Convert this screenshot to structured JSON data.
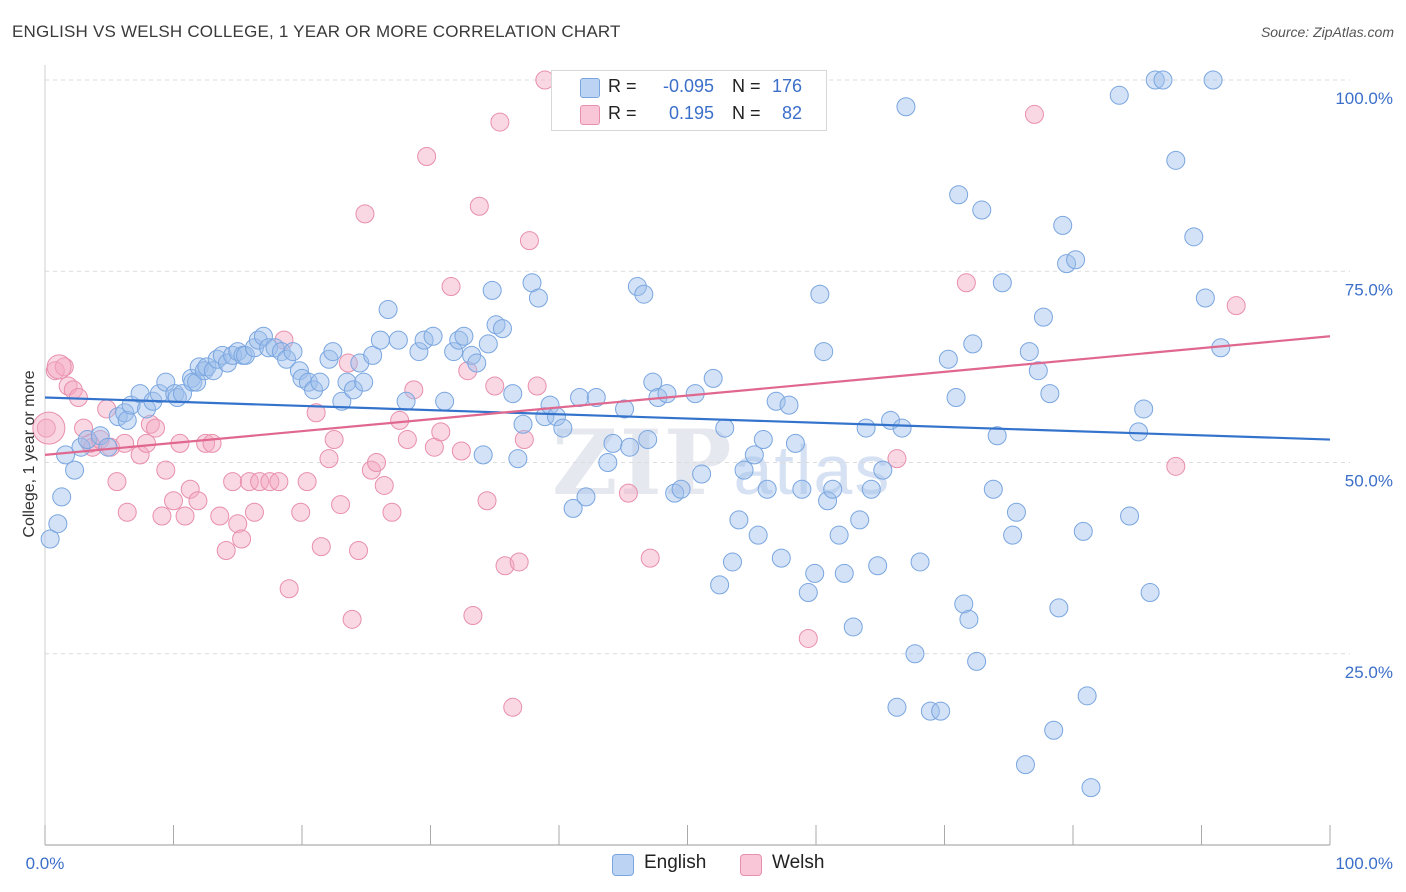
{
  "title": "ENGLISH VS WELSH COLLEGE, 1 YEAR OR MORE CORRELATION CHART",
  "source": "Source: ZipAtlas.com",
  "watermark_main": "ZIP",
  "watermark_sub": "atlas",
  "legend_top": {
    "english": {
      "r_label": "R =",
      "r_value": "-0.095",
      "n_label": "N =",
      "n_value": "176"
    },
    "welsh": {
      "r_label": "R =",
      "r_value": "0.195",
      "n_label": "N =",
      "n_value": "82"
    }
  },
  "colors": {
    "english": "#9dbfec",
    "english_line": "#3473cc",
    "welsh": "#f4a9c1",
    "welsh_line": "#e0688f",
    "tick": "#3b6fc9"
  },
  "chart_data": {
    "type": "scatter",
    "title": "ENGLISH VS WELSH COLLEGE, 1 YEAR OR MORE CORRELATION CHART",
    "xlabel": "",
    "ylabel": "College, 1 year or more",
    "xlim": [
      0,
      100
    ],
    "ylim": [
      0,
      100
    ],
    "x_tick_labels": [
      "0.0%",
      "100.0%"
    ],
    "y_tick_labels": [
      "25.0%",
      "50.0%",
      "75.0%",
      "100.0%"
    ],
    "y_ticks": [
      25,
      50,
      75,
      100
    ],
    "grid": true,
    "legend": "top-center and bottom",
    "series": [
      {
        "name": "English",
        "trend": [
          [
            0,
            58.5
          ],
          [
            100,
            53.0
          ]
        ],
        "points": [
          [
            0.4,
            40
          ],
          [
            1.0,
            42
          ],
          [
            1.3,
            45.5
          ],
          [
            1.6,
            51
          ],
          [
            2.3,
            49
          ],
          [
            2.8,
            52
          ],
          [
            3.3,
            53
          ],
          [
            4.3,
            53.5
          ],
          [
            4.9,
            52
          ],
          [
            5.7,
            56
          ],
          [
            6.2,
            56.5
          ],
          [
            6.4,
            55.5
          ],
          [
            6.7,
            57.5
          ],
          [
            7.4,
            59
          ],
          [
            7.9,
            57
          ],
          [
            8.4,
            58
          ],
          [
            8.9,
            59
          ],
          [
            9.4,
            60.5
          ],
          [
            10.1,
            59
          ],
          [
            10.3,
            58.5
          ],
          [
            10.7,
            59
          ],
          [
            11.4,
            61
          ],
          [
            11.5,
            60.5
          ],
          [
            11.8,
            60.5
          ],
          [
            12.0,
            62.5
          ],
          [
            12.4,
            62
          ],
          [
            12.6,
            62.5
          ],
          [
            13.1,
            62
          ],
          [
            13.4,
            63.5
          ],
          [
            13.8,
            64
          ],
          [
            14.2,
            63
          ],
          [
            14.6,
            64
          ],
          [
            15.0,
            64.5
          ],
          [
            15.4,
            64
          ],
          [
            15.6,
            64
          ],
          [
            16.3,
            65
          ],
          [
            16.6,
            66
          ],
          [
            17.0,
            66.5
          ],
          [
            17.4,
            65
          ],
          [
            17.9,
            65
          ],
          [
            18.4,
            64.5
          ],
          [
            18.8,
            63.5
          ],
          [
            19.3,
            64.5
          ],
          [
            19.8,
            62
          ],
          [
            20.0,
            61
          ],
          [
            20.5,
            60.5
          ],
          [
            20.9,
            59.5
          ],
          [
            21.4,
            60.5
          ],
          [
            22.1,
            63.5
          ],
          [
            22.4,
            64.5
          ],
          [
            23.1,
            58
          ],
          [
            23.5,
            60.5
          ],
          [
            24.0,
            59.5
          ],
          [
            24.5,
            63
          ],
          [
            24.8,
            60.5
          ],
          [
            25.5,
            64
          ],
          [
            26.1,
            66
          ],
          [
            26.7,
            70
          ],
          [
            27.5,
            66
          ],
          [
            28.1,
            58
          ],
          [
            29.1,
            64.5
          ],
          [
            29.5,
            66
          ],
          [
            30.2,
            66.5
          ],
          [
            31.1,
            58
          ],
          [
            31.8,
            64.5
          ],
          [
            32.2,
            66
          ],
          [
            32.6,
            66.5
          ],
          [
            33.2,
            64
          ],
          [
            33.6,
            63
          ],
          [
            34.1,
            51
          ],
          [
            34.5,
            65.5
          ],
          [
            34.8,
            72.5
          ],
          [
            35.1,
            68
          ],
          [
            35.6,
            67.5
          ],
          [
            36.4,
            59
          ],
          [
            36.8,
            50.5
          ],
          [
            37.2,
            55
          ],
          [
            37.9,
            73.5
          ],
          [
            38.4,
            71.5
          ],
          [
            38.9,
            56
          ],
          [
            39.3,
            57.5
          ],
          [
            39.8,
            56
          ],
          [
            40.3,
            54.5
          ],
          [
            41.1,
            44
          ],
          [
            41.6,
            58.5
          ],
          [
            42.1,
            45.5
          ],
          [
            42.9,
            58.5
          ],
          [
            43.8,
            50
          ],
          [
            44.2,
            52.5
          ],
          [
            45.1,
            57
          ],
          [
            45.5,
            52
          ],
          [
            46.1,
            73
          ],
          [
            46.6,
            72
          ],
          [
            46.9,
            53
          ],
          [
            47.3,
            60.5
          ],
          [
            47.7,
            58.5
          ],
          [
            48.4,
            59
          ],
          [
            49.0,
            46
          ],
          [
            49.5,
            46.5
          ],
          [
            50.6,
            59
          ],
          [
            51.1,
            48.5
          ],
          [
            52.0,
            61
          ],
          [
            52.5,
            34
          ],
          [
            52.9,
            54.5
          ],
          [
            53.5,
            37
          ],
          [
            54.0,
            42.5
          ],
          [
            54.4,
            49
          ],
          [
            55.2,
            51
          ],
          [
            55.5,
            40.5
          ],
          [
            55.9,
            53
          ],
          [
            56.2,
            46.5
          ],
          [
            56.9,
            58
          ],
          [
            57.3,
            37.5
          ],
          [
            57.9,
            57.5
          ],
          [
            58.4,
            52.5
          ],
          [
            58.9,
            46.5
          ],
          [
            59.4,
            33
          ],
          [
            59.9,
            35.5
          ],
          [
            60.3,
            72
          ],
          [
            60.6,
            64.5
          ],
          [
            60.9,
            45
          ],
          [
            61.3,
            46.5
          ],
          [
            61.8,
            40.5
          ],
          [
            62.2,
            35.5
          ],
          [
            62.9,
            28.5
          ],
          [
            63.4,
            42.5
          ],
          [
            63.9,
            54.5
          ],
          [
            64.3,
            46.5
          ],
          [
            64.8,
            36.5
          ],
          [
            65.2,
            49
          ],
          [
            65.8,
            55.5
          ],
          [
            66.3,
            18
          ],
          [
            66.7,
            54.5
          ],
          [
            67.0,
            96.5
          ],
          [
            67.7,
            25
          ],
          [
            68.1,
            37
          ],
          [
            68.9,
            17.5
          ],
          [
            69.7,
            17.5
          ],
          [
            70.3,
            63.5
          ],
          [
            70.9,
            58.5
          ],
          [
            71.1,
            85
          ],
          [
            71.5,
            31.5
          ],
          [
            71.9,
            29.5
          ],
          [
            72.2,
            65.5
          ],
          [
            72.5,
            24
          ],
          [
            72.9,
            83
          ],
          [
            73.8,
            46.5
          ],
          [
            74.1,
            53.5
          ],
          [
            74.5,
            73.5
          ],
          [
            75.3,
            40.5
          ],
          [
            75.6,
            43.5
          ],
          [
            76.3,
            10.5
          ],
          [
            76.6,
            64.5
          ],
          [
            77.3,
            62
          ],
          [
            77.7,
            69
          ],
          [
            78.2,
            59
          ],
          [
            78.5,
            15
          ],
          [
            78.9,
            31
          ],
          [
            79.2,
            81
          ],
          [
            79.5,
            76
          ],
          [
            80.2,
            76.5
          ],
          [
            80.8,
            41
          ],
          [
            81.1,
            19.5
          ],
          [
            81.4,
            7.5
          ],
          [
            83.6,
            98
          ],
          [
            84.4,
            43
          ],
          [
            85.1,
            54
          ],
          [
            85.5,
            57
          ],
          [
            86.0,
            33
          ],
          [
            86.4,
            100
          ],
          [
            87.0,
            100
          ],
          [
            88.0,
            89.5
          ],
          [
            89.4,
            79.5
          ],
          [
            90.3,
            71.5
          ],
          [
            90.9,
            100
          ],
          [
            91.5,
            65
          ]
        ]
      },
      {
        "name": "Welsh",
        "trend": [
          [
            0,
            51.0
          ],
          [
            100,
            66.5
          ]
        ],
        "points": [
          [
            0.1,
            54.5
          ],
          [
            0.8,
            62
          ],
          [
            1.5,
            62.5
          ],
          [
            1.8,
            60
          ],
          [
            2.2,
            59.5
          ],
          [
            2.6,
            58.5
          ],
          [
            3.0,
            54.5
          ],
          [
            3.5,
            52.5
          ],
          [
            3.7,
            52
          ],
          [
            4.3,
            53
          ],
          [
            4.8,
            57
          ],
          [
            5.1,
            52
          ],
          [
            5.6,
            47.5
          ],
          [
            6.2,
            52.5
          ],
          [
            6.4,
            43.5
          ],
          [
            7.4,
            51
          ],
          [
            7.9,
            52.5
          ],
          [
            8.2,
            55
          ],
          [
            8.6,
            54.5
          ],
          [
            9.1,
            43
          ],
          [
            9.4,
            49
          ],
          [
            10.0,
            45
          ],
          [
            10.5,
            52.5
          ],
          [
            10.9,
            43
          ],
          [
            11.3,
            46.5
          ],
          [
            11.9,
            45
          ],
          [
            12.5,
            52.5
          ],
          [
            13.0,
            52.5
          ],
          [
            13.6,
            43
          ],
          [
            14.1,
            38.5
          ],
          [
            14.6,
            47.5
          ],
          [
            15.0,
            42
          ],
          [
            15.3,
            40
          ],
          [
            15.9,
            47.5
          ],
          [
            16.3,
            43.5
          ],
          [
            16.7,
            47.5
          ],
          [
            17.5,
            47.5
          ],
          [
            18.2,
            47.5
          ],
          [
            18.6,
            66
          ],
          [
            19.0,
            33.5
          ],
          [
            19.9,
            43.5
          ],
          [
            20.4,
            47.5
          ],
          [
            21.1,
            56.5
          ],
          [
            21.5,
            39
          ],
          [
            22.1,
            50.5
          ],
          [
            22.5,
            53
          ],
          [
            23.0,
            44.5
          ],
          [
            23.6,
            63
          ],
          [
            23.9,
            29.5
          ],
          [
            24.4,
            38.5
          ],
          [
            24.9,
            82.5
          ],
          [
            25.4,
            49
          ],
          [
            25.8,
            50
          ],
          [
            26.4,
            47
          ],
          [
            27.0,
            43.5
          ],
          [
            27.6,
            55.5
          ],
          [
            28.2,
            53
          ],
          [
            28.7,
            59.5
          ],
          [
            29.7,
            90
          ],
          [
            30.3,
            52
          ],
          [
            30.8,
            54
          ],
          [
            31.6,
            73
          ],
          [
            32.4,
            51.5
          ],
          [
            32.9,
            62
          ],
          [
            33.3,
            30
          ],
          [
            33.8,
            83.5
          ],
          [
            34.4,
            45
          ],
          [
            35.0,
            60
          ],
          [
            35.4,
            94.5
          ],
          [
            35.8,
            36.5
          ],
          [
            36.4,
            18
          ],
          [
            36.9,
            37
          ],
          [
            37.3,
            53
          ],
          [
            37.7,
            79
          ],
          [
            38.3,
            60
          ],
          [
            38.9,
            100
          ],
          [
            45.4,
            46
          ],
          [
            47.1,
            37.5
          ],
          [
            59.4,
            27
          ],
          [
            66.3,
            50.5
          ],
          [
            71.7,
            73.5
          ],
          [
            77.0,
            95.5
          ],
          [
            88.0,
            49.5
          ],
          [
            92.7,
            70.5
          ]
        ]
      }
    ]
  },
  "legend_bottom": {
    "english": "English",
    "welsh": "Welsh"
  }
}
